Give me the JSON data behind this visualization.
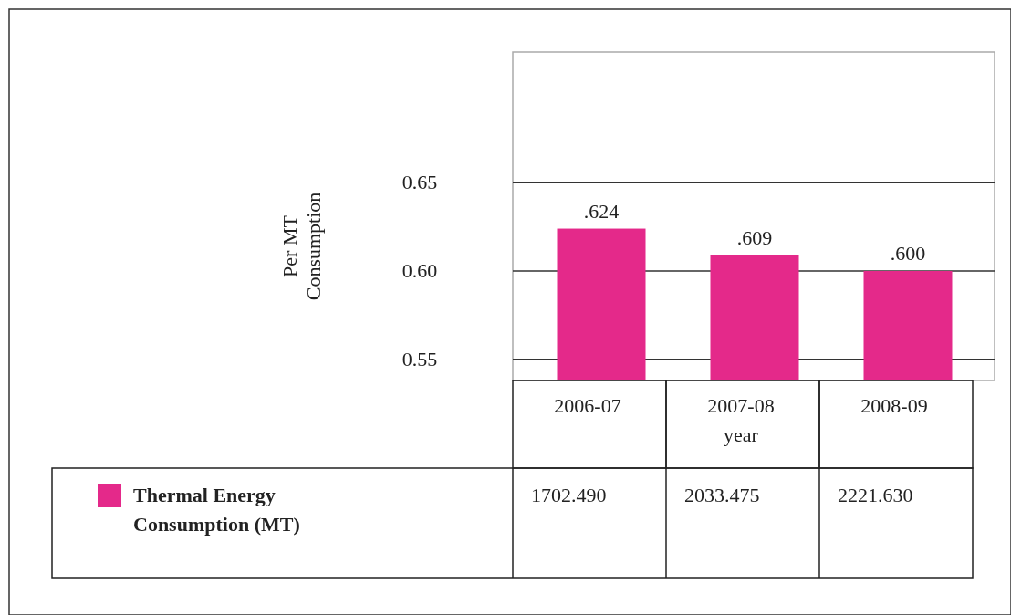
{
  "chart_data": {
    "type": "bar",
    "xlabel": "year",
    "ylabel": "Per MT Consumption",
    "categories": [
      "2006-07",
      "2007-08",
      "2008-09"
    ],
    "series": [
      {
        "name": "Thermal Energy Consumption (MT)",
        "color": "#e4298a",
        "values": [
          0.624,
          0.609,
          0.6
        ],
        "value_labels": [
          ".624",
          ".609",
          ".600"
        ]
      }
    ],
    "ylim": [
      0.538,
      0.724
    ],
    "yticks": [
      {
        "value": 0.55,
        "label": "0.55"
      },
      {
        "value": 0.6,
        "label": "0.60"
      },
      {
        "value": 0.65,
        "label": "0.65"
      }
    ],
    "grid": "y",
    "legend": "bottom left",
    "annotations": [
      "1702.490",
      "2033.475",
      "2221.630"
    ]
  }
}
